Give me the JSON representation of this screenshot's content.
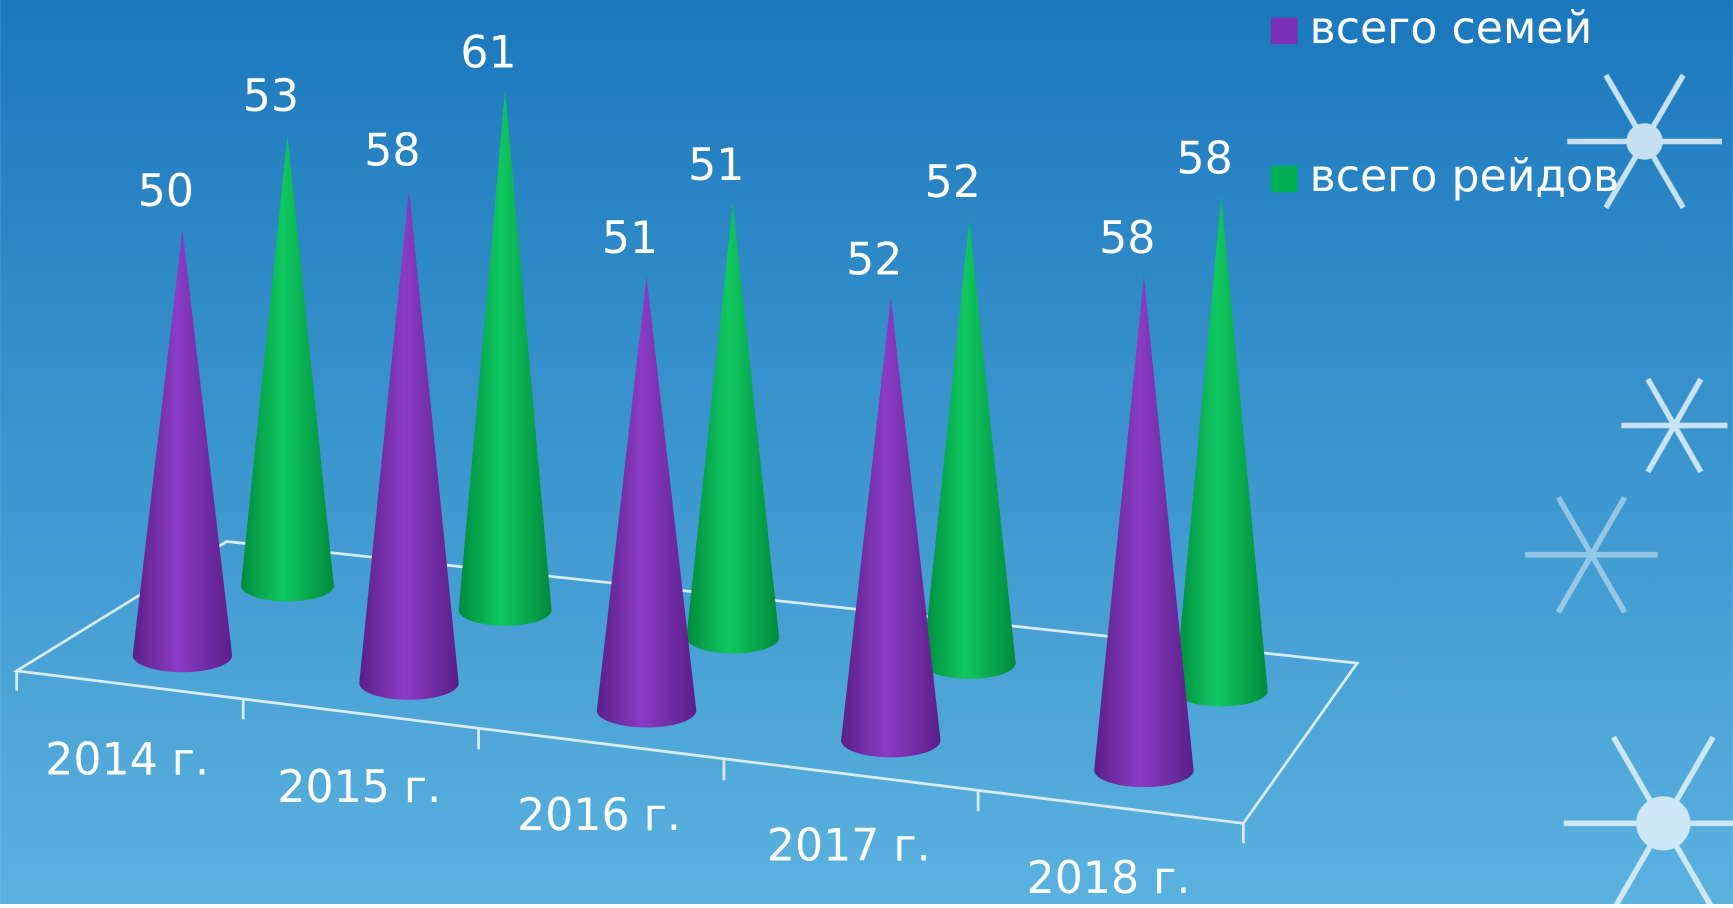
{
  "chart_data": {
    "type": "cone",
    "categories": [
      "2014 г.",
      "2015 г.",
      "2016 г.",
      "2017 г.",
      "2018 г."
    ],
    "series": [
      {
        "name": "всего семей",
        "color": "#7a2fb4",
        "values": [
          50,
          58,
          51,
          52,
          58
        ]
      },
      {
        "name": "всего рейдов",
        "color": "#00b050",
        "values": [
          53,
          61,
          51,
          52,
          58
        ]
      }
    ],
    "legend": "top-right"
  }
}
